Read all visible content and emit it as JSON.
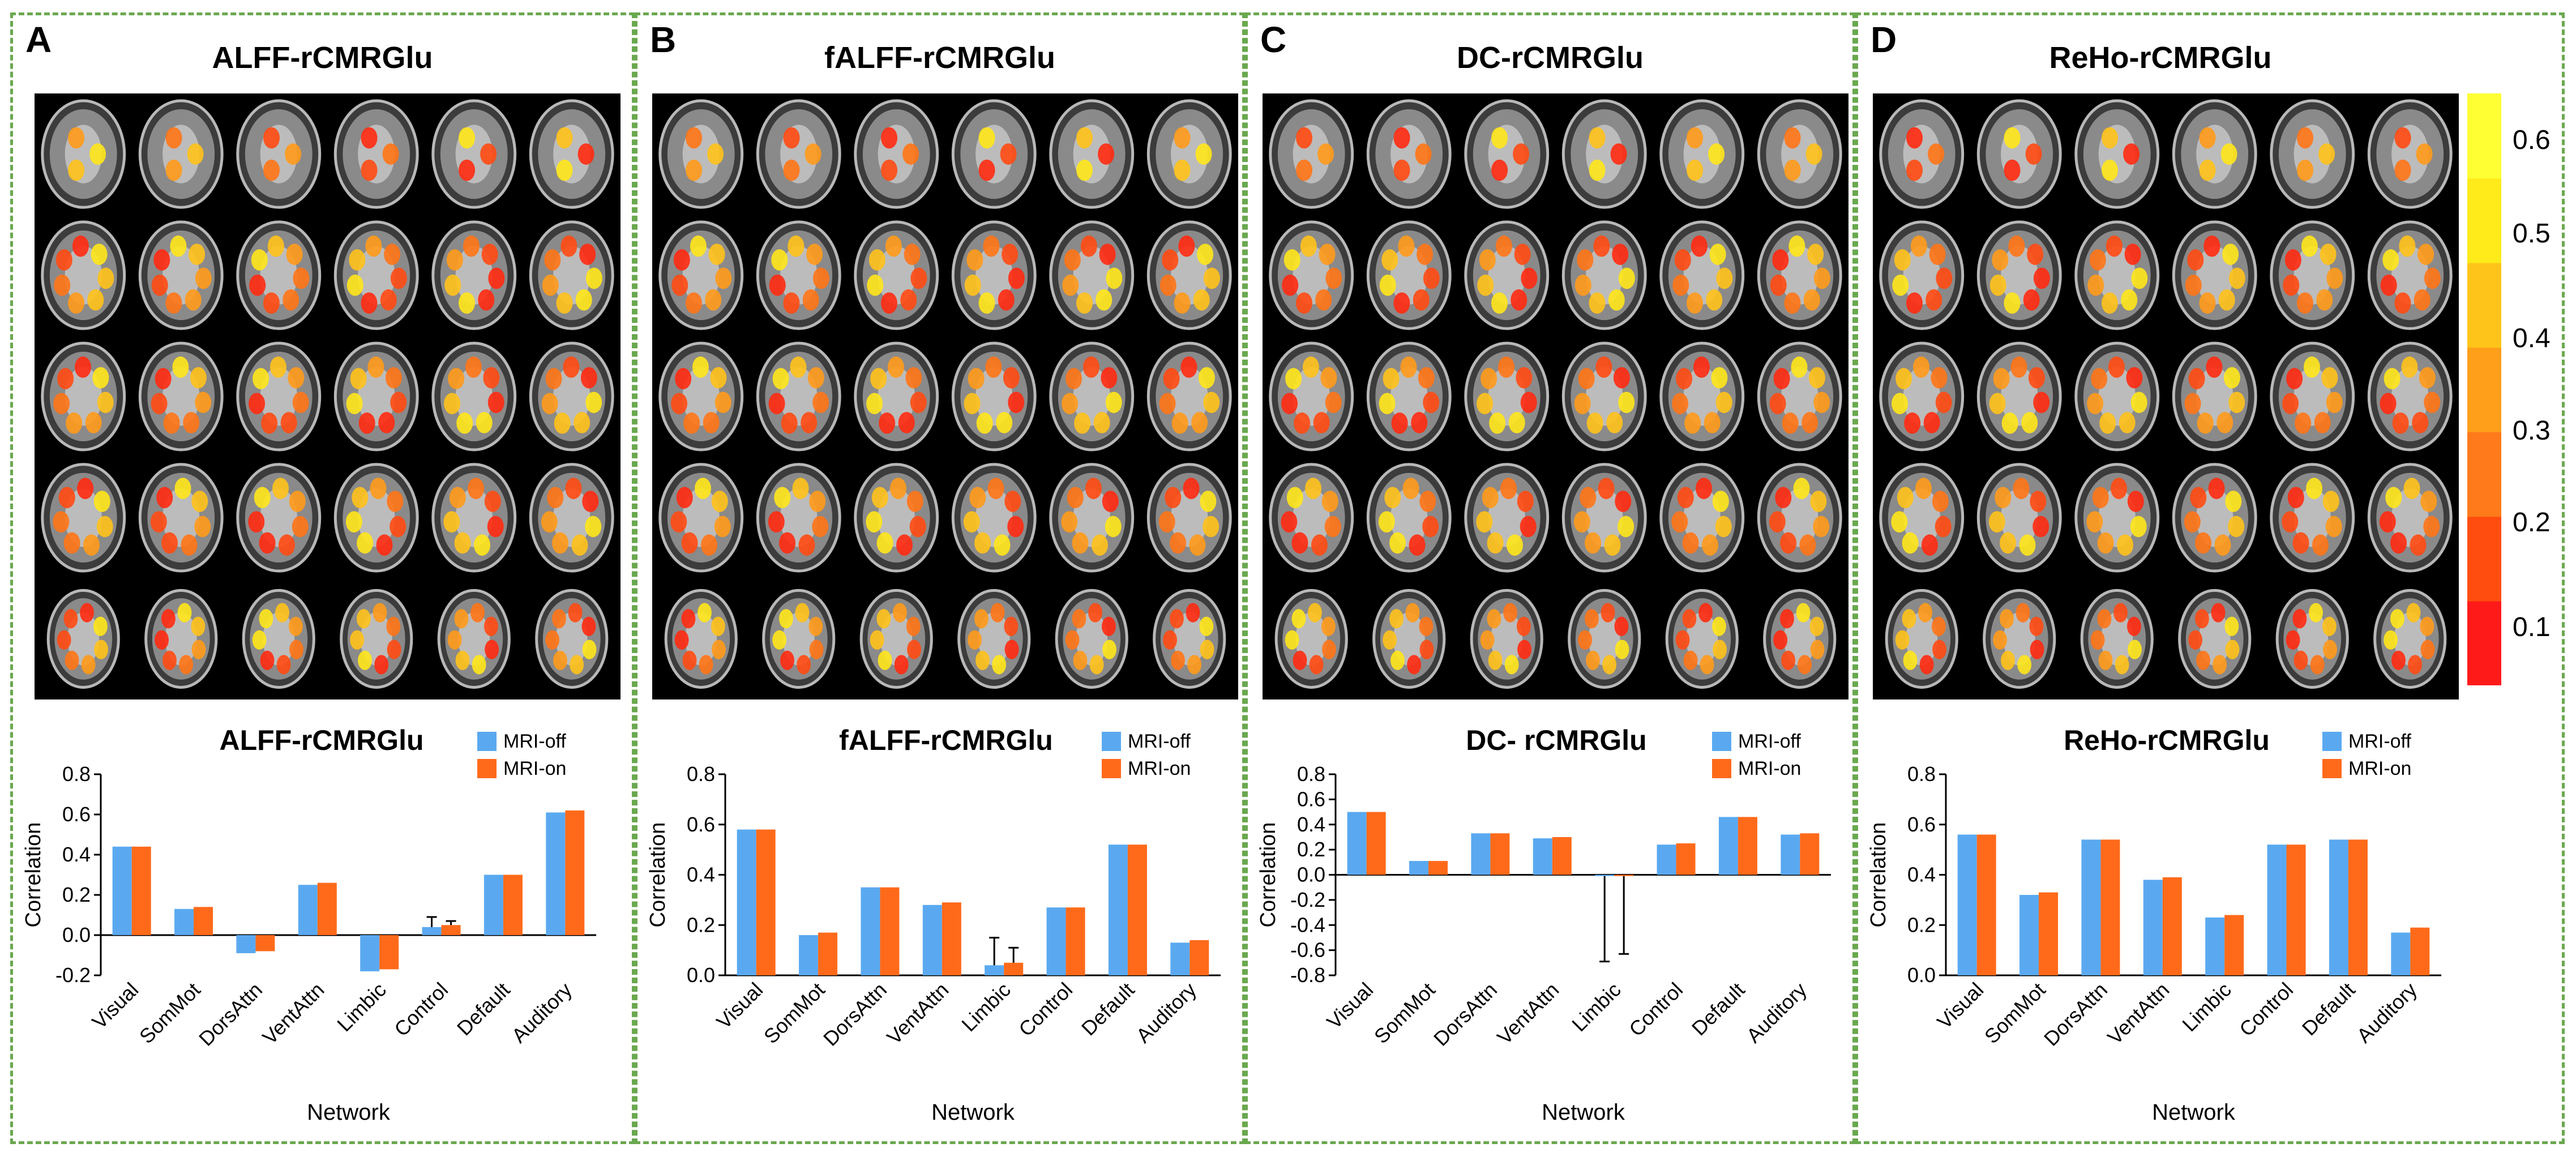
{
  "panels": [
    {
      "letter": "A",
      "title": "ALFF-rCMRGlu"
    },
    {
      "letter": "B",
      "title": "fALFF-rCMRGlu"
    },
    {
      "letter": "C",
      "title": "DC-rCMRGlu"
    },
    {
      "letter": "D",
      "title": "ReHo-rCMRGlu"
    }
  ],
  "colorbar": {
    "labels": [
      "0.6",
      "0.5",
      "0.4",
      "0.3",
      "0.2",
      "0.1"
    ],
    "colors": [
      "#ff1a1a",
      "#ff4d10",
      "#ff7a1a",
      "#ff9f1a",
      "#ffc41a",
      "#ffea1a",
      "#ffff33"
    ]
  },
  "series_colors": {
    "MRI-off": "#5aa9f0",
    "MRI-on": "#ff6a1a"
  },
  "chart_data": [
    {
      "type": "bar",
      "title": "ALFF-rCMRGlu",
      "xlabel": "Network",
      "ylabel": "Correlation",
      "categories": [
        "Visual",
        "SomMot",
        "DorsAttn",
        "VentAttn",
        "Limbic",
        "Control",
        "Default",
        "Auditory"
      ],
      "ylim": [
        -0.2,
        0.8
      ],
      "yticks": [
        "-0.2",
        "0.0",
        "0.2",
        "0.4",
        "0.6",
        "0.8"
      ],
      "legend": [
        "MRI-off",
        "MRI-on"
      ],
      "series": [
        {
          "name": "MRI-off",
          "values": [
            0.44,
            0.13,
            -0.09,
            0.25,
            -0.18,
            0.04,
            0.3,
            0.61
          ]
        },
        {
          "name": "MRI-on",
          "values": [
            0.44,
            0.14,
            -0.08,
            0.26,
            -0.17,
            0.05,
            0.3,
            0.62
          ]
        }
      ],
      "errors": [
        {
          "series": "MRI-off",
          "category": "Control",
          "value": 0.05
        },
        {
          "series": "MRI-on",
          "category": "Control",
          "value": 0.02
        }
      ]
    },
    {
      "type": "bar",
      "title": "fALFF-rCMRGlu",
      "xlabel": "Network",
      "ylabel": "Correlation",
      "categories": [
        "Visual",
        "SomMot",
        "DorsAttn",
        "VentAttn",
        "Limbic",
        "Control",
        "Default",
        "Auditory"
      ],
      "ylim": [
        0,
        0.8
      ],
      "yticks": [
        "0.0",
        "0.2",
        "0.4",
        "0.6",
        "0.8"
      ],
      "legend": [
        "MRI-off",
        "MRI-on"
      ],
      "series": [
        {
          "name": "MRI-off",
          "values": [
            0.58,
            0.16,
            0.35,
            0.28,
            0.04,
            0.27,
            0.52,
            0.13
          ]
        },
        {
          "name": "MRI-on",
          "values": [
            0.58,
            0.17,
            0.35,
            0.29,
            0.05,
            0.27,
            0.52,
            0.14
          ]
        }
      ],
      "errors": [
        {
          "series": "MRI-off",
          "category": "Limbic",
          "value": 0.11
        },
        {
          "series": "MRI-on",
          "category": "Limbic",
          "value": 0.06
        }
      ]
    },
    {
      "type": "bar",
      "title": "DC- rCMRGlu",
      "xlabel": "Network",
      "ylabel": "Correlation",
      "categories": [
        "Visual",
        "SomMot",
        "DorsAttn",
        "VentAttn",
        "Limbic",
        "Control",
        "Default",
        "Auditory"
      ],
      "ylim": [
        -0.8,
        0.8
      ],
      "yticks": [
        "-0.8",
        "-0.6",
        "-0.4",
        "-0.2",
        "0.0",
        "0.2",
        "0.4",
        "0.6",
        "0.8"
      ],
      "legend": [
        "MRI-off",
        "MRI-on"
      ],
      "series": [
        {
          "name": "MRI-off",
          "values": [
            0.5,
            0.11,
            0.33,
            0.29,
            -0.01,
            0.24,
            0.46,
            0.32
          ]
        },
        {
          "name": "MRI-on",
          "values": [
            0.5,
            0.11,
            0.33,
            0.3,
            -0.01,
            0.25,
            0.46,
            0.33
          ]
        }
      ],
      "errors": [
        {
          "series": "MRI-off",
          "category": "Limbic",
          "value": 0.68
        },
        {
          "series": "MRI-on",
          "category": "Limbic",
          "value": 0.62
        }
      ]
    },
    {
      "type": "bar",
      "title": "ReHo-rCMRGlu",
      "xlabel": "Network",
      "ylabel": "Correlation",
      "categories": [
        "Visual",
        "SomMot",
        "DorsAttn",
        "VentAttn",
        "Limbic",
        "Control",
        "Default",
        "Auditory"
      ],
      "ylim": [
        0,
        0.8
      ],
      "yticks": [
        "0.0",
        "0.2",
        "0.4",
        "0.6",
        "0.8"
      ],
      "legend": [
        "MRI-off",
        "MRI-on"
      ],
      "series": [
        {
          "name": "MRI-off",
          "values": [
            0.56,
            0.32,
            0.54,
            0.38,
            0.23,
            0.52,
            0.54,
            0.17
          ]
        },
        {
          "name": "MRI-on",
          "values": [
            0.56,
            0.33,
            0.54,
            0.39,
            0.24,
            0.52,
            0.54,
            0.19
          ]
        }
      ],
      "errors": []
    }
  ]
}
